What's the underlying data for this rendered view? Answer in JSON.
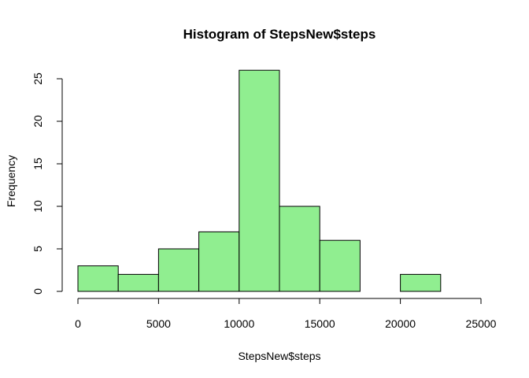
{
  "chart_data": {
    "type": "bar",
    "subtype": "histogram",
    "title": "Histogram of StepsNew$steps",
    "xlabel": "StepsNew$steps",
    "ylabel": "Frequency",
    "bin_edges": [
      0,
      2500,
      5000,
      7500,
      10000,
      12500,
      15000,
      17500,
      20000,
      22500
    ],
    "bins": [
      {
        "start": 0,
        "end": 2500,
        "count": 3
      },
      {
        "start": 2500,
        "end": 5000,
        "count": 2
      },
      {
        "start": 5000,
        "end": 7500,
        "count": 5
      },
      {
        "start": 7500,
        "end": 10000,
        "count": 7
      },
      {
        "start": 10000,
        "end": 12500,
        "count": 26
      },
      {
        "start": 12500,
        "end": 15000,
        "count": 10
      },
      {
        "start": 15000,
        "end": 17500,
        "count": 6
      },
      {
        "start": 17500,
        "end": 20000,
        "count": 0
      },
      {
        "start": 20000,
        "end": 22500,
        "count": 2
      }
    ],
    "xlim": [
      0,
      25000
    ],
    "ylim": [
      0,
      25
    ],
    "x_ticks": [
      "0",
      "5000",
      "10000",
      "15000",
      "20000",
      "25000"
    ],
    "y_ticks": [
      "0",
      "5",
      "10",
      "15",
      "20",
      "25"
    ],
    "bar_color": "#90EE90",
    "bar_border_color": "#000000",
    "grid": false,
    "legend": "none"
  }
}
